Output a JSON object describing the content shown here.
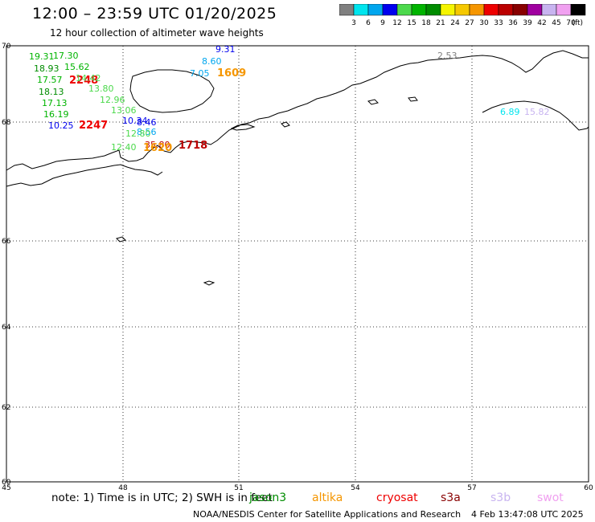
{
  "header": {
    "title": "12:00 – 23:59 UTC 01/20/2025",
    "subtitle": "12 hour collection of altimeter wave heights"
  },
  "colorbar": {
    "unit": "(ft)",
    "bins": [
      {
        "label": "3",
        "color": "#808080"
      },
      {
        "label": "6",
        "color": "#00e5ee"
      },
      {
        "label": "9",
        "color": "#00a6ee"
      },
      {
        "label": "12",
        "color": "#0000ee"
      },
      {
        "label": "15",
        "color": "#4cd94c"
      },
      {
        "label": "18",
        "color": "#00b400"
      },
      {
        "label": "21",
        "color": "#008c00"
      },
      {
        "label": "24",
        "color": "#f5f500"
      },
      {
        "label": "27",
        "color": "#f5c800"
      },
      {
        "label": "30",
        "color": "#f59600"
      },
      {
        "label": "33",
        "color": "#ee0000"
      },
      {
        "label": "36",
        "color": "#bb0000"
      },
      {
        "label": "39",
        "color": "#880000"
      },
      {
        "label": "42",
        "color": "#a000a0"
      },
      {
        "label": "45",
        "color": "#c8b4f0"
      },
      {
        "label": "70",
        "color": "#f0a0f0"
      },
      {
        "label": "",
        "color": "#000000"
      }
    ]
  },
  "map": {
    "lon_ticks": [
      "45",
      "48",
      "51",
      "54",
      "57",
      "60"
    ],
    "lat_ticks": [
      "70",
      "68",
      "66",
      "64",
      "62",
      "60"
    ],
    "observations": [
      {
        "text": "19.31",
        "color": "#00b400"
      },
      {
        "text": "17.30",
        "color": "#00b400"
      },
      {
        "text": "18.93",
        "color": "#008c00"
      },
      {
        "text": "15.62",
        "color": "#00b400"
      },
      {
        "text": "17.57",
        "color": "#00b400"
      },
      {
        "text": "2248",
        "color": "#ee0000"
      },
      {
        "text": "14.42",
        "color": "#4cd94c"
      },
      {
        "text": "18.13",
        "color": "#008c00"
      },
      {
        "text": "13.80",
        "color": "#4cd94c"
      },
      {
        "text": "17.13",
        "color": "#00b400"
      },
      {
        "text": "12.96",
        "color": "#4cd94c"
      },
      {
        "text": "13.06",
        "color": "#4cd94c"
      },
      {
        "text": "16.19",
        "color": "#00b400"
      },
      {
        "text": "10.34",
        "color": "#0000ee"
      },
      {
        "text": "8.46",
        "color": "#0000ee"
      },
      {
        "text": "10.25",
        "color": "#0000ee"
      },
      {
        "text": "2247",
        "color": "#ee0000"
      },
      {
        "text": "8.56",
        "color": "#00a6ee"
      },
      {
        "text": "12.80",
        "color": "#4cd94c"
      },
      {
        "text": "12.40",
        "color": "#4cd94c"
      },
      {
        "text": "35.80",
        "color": "#bb0000"
      },
      {
        "text": "1620",
        "color": "#f59600"
      },
      {
        "text": "1718",
        "color": "#bb0000"
      },
      {
        "text": "9.31",
        "color": "#0000ee"
      },
      {
        "text": "8.60",
        "color": "#00a6ee"
      },
      {
        "text": "7.05",
        "color": "#00a6ee"
      },
      {
        "text": "1609",
        "color": "#f59600"
      },
      {
        "text": "2.53",
        "color": "#808080"
      },
      {
        "text": "6.89",
        "color": "#00e5ee"
      },
      {
        "text": "15.82",
        "color": "#c8b4f0"
      }
    ]
  },
  "footer": {
    "note": "note: 1) Time is in UTC; 2) SWH is in feet",
    "satellites": [
      {
        "name": "jason3",
        "color": "#008c00"
      },
      {
        "name": "altika",
        "color": "#f59600"
      },
      {
        "name": "cryosat",
        "color": "#ee0000"
      },
      {
        "name": "s3a",
        "color": "#880000"
      },
      {
        "name": "s3b",
        "color": "#c8b4f0"
      },
      {
        "name": "swot",
        "color": "#f0a0f0"
      }
    ],
    "credit": "NOAA/NESDIS Center for Satellite Applications and Research",
    "timestamp": "4 Feb 13:47:08 UTC 2025"
  }
}
